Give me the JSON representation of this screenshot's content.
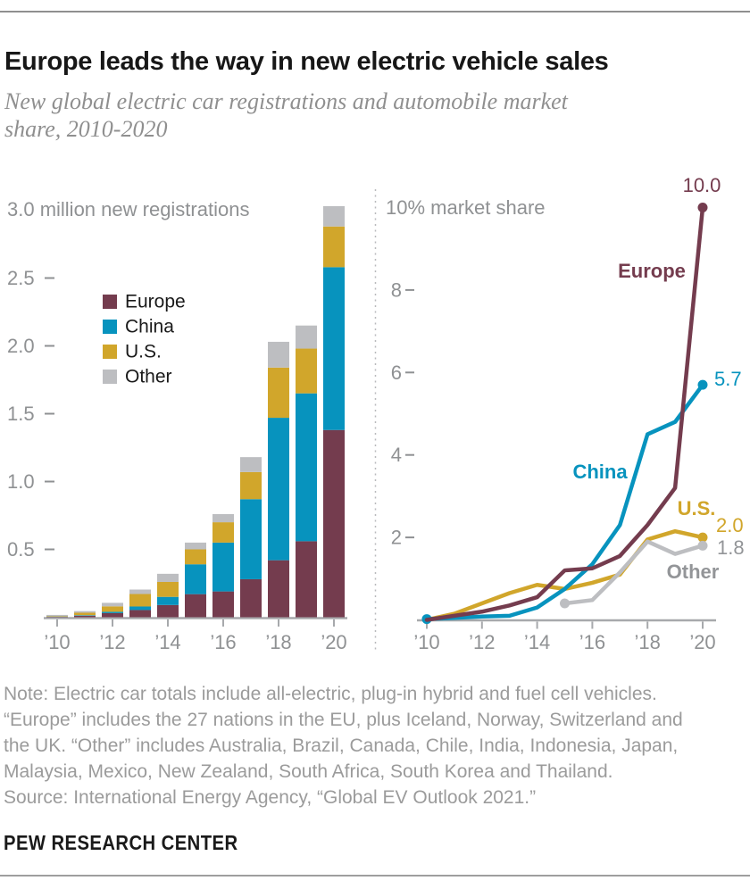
{
  "header": {
    "title": "Europe leads the way in new electric vehicle sales",
    "subtitle_lines": [
      "New global electric car registrations and automobile market",
      "share, 2010-2020"
    ]
  },
  "colors": {
    "europe": "#743C4E",
    "china": "#0793BE",
    "us": "#D1A62B",
    "other": "#BDBEC1",
    "other_text": "#939598",
    "axis": "#A7A9AC",
    "label": "#8F9193",
    "legend_text": "#1A1A1A"
  },
  "chart_data": [
    {
      "type": "bar",
      "title": "3.0 million new registrations",
      "ylabel": "million new registrations",
      "ylim": [
        0,
        3
      ],
      "categories": [
        2010,
        2011,
        2012,
        2013,
        2014,
        2015,
        2016,
        2017,
        2018,
        2019,
        2020
      ],
      "x_tick_labels": [
        "’10",
        "’12",
        "’14",
        "’16",
        "’18",
        "’20"
      ],
      "y_tick_labels": [
        "0.5",
        "1.0",
        "1.5",
        "2.0",
        "2.5"
      ],
      "grid": false,
      "legend_position": "upper-left-inside",
      "series": [
        {
          "name": "Europe",
          "key": "europe",
          "values": [
            0.003,
            0.011,
            0.03,
            0.053,
            0.09,
            0.17,
            0.19,
            0.28,
            0.42,
            0.56,
            1.38
          ]
        },
        {
          "name": "China",
          "key": "china",
          "values": [
            0.002,
            0.004,
            0.01,
            0.026,
            0.06,
            0.22,
            0.36,
            0.59,
            1.05,
            1.09,
            1.2
          ]
        },
        {
          "name": "U.S.",
          "key": "us",
          "values": [
            0.004,
            0.018,
            0.04,
            0.092,
            0.11,
            0.11,
            0.15,
            0.2,
            0.37,
            0.33,
            0.3
          ]
        },
        {
          "name": "Other",
          "key": "other",
          "values": [
            0.008,
            0.012,
            0.026,
            0.033,
            0.06,
            0.05,
            0.06,
            0.11,
            0.19,
            0.17,
            0.15
          ]
        }
      ]
    },
    {
      "type": "line",
      "title": "10% market share",
      "ylabel": "% market share",
      "ylim": [
        0,
        10
      ],
      "categories": [
        2010,
        2011,
        2012,
        2013,
        2014,
        2015,
        2016,
        2017,
        2018,
        2019,
        2020
      ],
      "x_tick_labels": [
        "’10",
        "’12",
        "’14",
        "’16",
        "’18",
        "’20"
      ],
      "y_tick_labels": [
        "2",
        "4",
        "6",
        "8"
      ],
      "grid": false,
      "series": [
        {
          "name": "U.S.",
          "key": "us",
          "end_label": "2.0",
          "values": [
            0,
            0.15,
            0.4,
            0.65,
            0.85,
            0.75,
            0.9,
            1.1,
            1.95,
            2.15,
            2.0
          ]
        },
        {
          "name": "Other",
          "key": "other",
          "end_label": "1.8",
          "start_dot_year": 2015,
          "values": [
            null,
            null,
            null,
            null,
            null,
            0.4,
            0.48,
            1.15,
            1.9,
            1.6,
            1.8
          ]
        },
        {
          "name": "China",
          "key": "china",
          "end_label": "5.7",
          "start_dot_year": 2010,
          "values": [
            0.02,
            0.05,
            0.08,
            0.1,
            0.3,
            0.75,
            1.35,
            2.3,
            4.5,
            4.8,
            5.7
          ]
        },
        {
          "name": "Europe",
          "key": "europe",
          "end_label": "10.0",
          "values": [
            0,
            0.1,
            0.2,
            0.35,
            0.55,
            1.2,
            1.25,
            1.55,
            2.3,
            3.2,
            10.0
          ]
        }
      ]
    }
  ],
  "notes": {
    "lines": [
      "Note: Electric car totals include all-electric, plug-in hybrid and fuel cell vehicles.",
      "“Europe” includes the 27 nations in the EU, plus Iceland, Norway, Switzerland and",
      "the UK. “Other” includes Australia, Brazil, Canada, Chile, India, Indonesia, Japan,",
      "Malaysia, Mexico, New Zealand, South Africa, South Korea and Thailand.",
      "Source: International Energy Agency, “Global EV Outlook 2021.”"
    ]
  },
  "footer": {
    "brand": "PEW RESEARCH CENTER"
  }
}
